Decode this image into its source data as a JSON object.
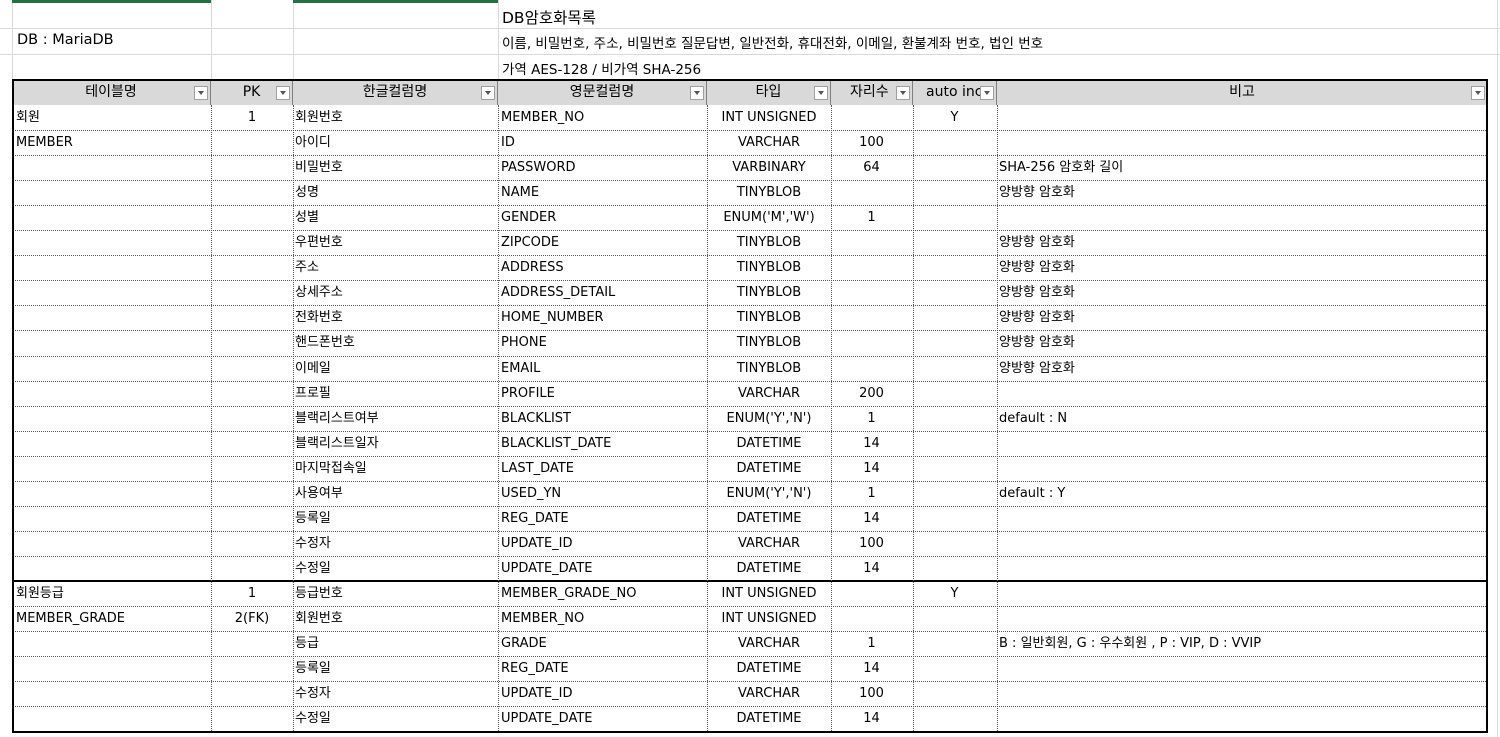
{
  "meta": {
    "db_label": "DB : MariaDB",
    "title": "DB암호화목록",
    "encrypted_fields": "이름, 비밀번호, 주소, 비밀번호 질문답변, 일반전화, 휴대전화, 이메일, 환불계좌 번호, 법인 번호",
    "algorithms": "가역 AES-128 / 비가역 SHA-256"
  },
  "columns": [
    "테이블명",
    "PK",
    "한글컬럼명",
    "영문컬럼명",
    "타입",
    "자리수",
    "auto inc",
    "비고"
  ],
  "rows": [
    [
      "회원",
      "1",
      "회원번호",
      "MEMBER_NO",
      "INT UNSIGNED",
      "",
      "Y",
      ""
    ],
    [
      "MEMBER",
      "",
      "아이디",
      "ID",
      "VARCHAR",
      "100",
      "",
      ""
    ],
    [
      "",
      "",
      "비밀번호",
      "PASSWORD",
      "VARBINARY",
      "64",
      "",
      "SHA-256 암호화 길이"
    ],
    [
      "",
      "",
      "성명",
      "NAME",
      "TINYBLOB",
      "",
      "",
      "양방향 암호화"
    ],
    [
      "",
      "",
      "성별",
      "GENDER",
      "ENUM('M','W')",
      "1",
      "",
      ""
    ],
    [
      "",
      "",
      "우편번호",
      "ZIPCODE",
      "TINYBLOB",
      "",
      "",
      "양방향 암호화"
    ],
    [
      "",
      "",
      "주소",
      "ADDRESS",
      "TINYBLOB",
      "",
      "",
      "양방향 암호화"
    ],
    [
      "",
      "",
      "상세주소",
      "ADDRESS_DETAIL",
      "TINYBLOB",
      "",
      "",
      "양방향 암호화"
    ],
    [
      "",
      "",
      "전화번호",
      "HOME_NUMBER",
      "TINYBLOB",
      "",
      "",
      "양방향 암호화"
    ],
    [
      "",
      "",
      "핸드폰번호",
      "PHONE",
      "TINYBLOB",
      "",
      "",
      "양방향 암호화"
    ],
    [
      "",
      "",
      "이메일",
      "EMAIL",
      "TINYBLOB",
      "",
      "",
      "양방향 암호화"
    ],
    [
      "",
      "",
      "프로필",
      "PROFILE",
      "VARCHAR",
      "200",
      "",
      ""
    ],
    [
      "",
      "",
      "블랙리스트여부",
      "BLACKLIST",
      "ENUM('Y','N')",
      "1",
      "",
      "default : N"
    ],
    [
      "",
      "",
      "블랙리스트일자",
      "BLACKLIST_DATE",
      "DATETIME",
      "14",
      "",
      ""
    ],
    [
      "",
      "",
      "마지막접속일",
      "LAST_DATE",
      "DATETIME",
      "14",
      "",
      ""
    ],
    [
      "",
      "",
      "사용여부",
      "USED_YN",
      "ENUM('Y','N')",
      "1",
      "",
      "default : Y"
    ],
    [
      "",
      "",
      "등록일",
      "REG_DATE",
      "DATETIME",
      "14",
      "",
      ""
    ],
    [
      "",
      "",
      "수정자",
      "UPDATE_ID",
      "VARCHAR",
      "100",
      "",
      ""
    ],
    [
      "",
      "",
      "수정일",
      "UPDATE_DATE",
      "DATETIME",
      "14",
      "",
      ""
    ],
    [
      "회원등급",
      "1",
      "등급번호",
      "MEMBER_GRADE_NO",
      "INT UNSIGNED",
      "",
      "Y",
      ""
    ],
    [
      "MEMBER_GRADE",
      "2(FK)",
      "회원번호",
      "MEMBER_NO",
      "INT UNSIGNED",
      "",
      "",
      ""
    ],
    [
      "",
      "",
      "등급",
      "GRADE",
      "VARCHAR",
      "1",
      "",
      "B : 일반회원, G : 우수회원  , P : VIP, D : VVIP"
    ],
    [
      "",
      "",
      "등록일",
      "REG_DATE",
      "DATETIME",
      "14",
      "",
      ""
    ],
    [
      "",
      "",
      "수정자",
      "UPDATE_ID",
      "VARCHAR",
      "100",
      "",
      ""
    ],
    [
      "",
      "",
      "수정일",
      "UPDATE_DATE",
      "DATETIME",
      "14",
      "",
      ""
    ]
  ]
}
